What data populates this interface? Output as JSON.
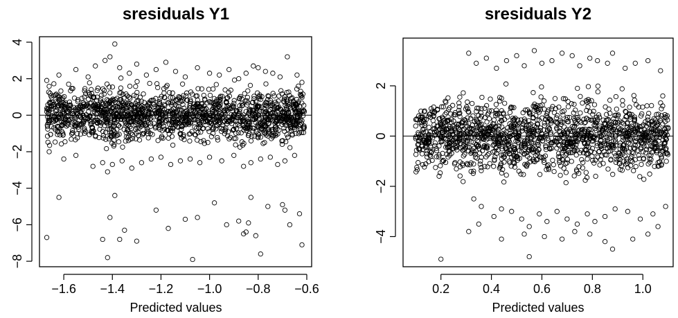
{
  "chart_data": [
    {
      "type": "scatter",
      "title": "sresiduals Y1",
      "xlabel": "Predicted values",
      "ylabel": "",
      "xlim": [
        -1.7,
        -0.58
      ],
      "ylim": [
        -8.3,
        4.3
      ],
      "xticks": [
        -1.6,
        -1.4,
        -1.2,
        -1.0,
        -0.8,
        -0.6
      ],
      "xtick_labels": [
        "−1.6",
        "−1.4",
        "−1.2",
        "−1.0",
        "−0.8",
        "−0.6"
      ],
      "yticks": [
        4,
        2,
        0,
        -2,
        -4,
        -6,
        -8
      ],
      "ytick_labels": [
        "4",
        "2",
        "0",
        "−2",
        "−4",
        "−6",
        "−8"
      ],
      "reference_line_y": 0,
      "marker": "open-circle",
      "series": [
        {
          "x": [
            -1.67,
            -1.66,
            -1.64,
            -1.63,
            -1.61,
            -1.6,
            -1.58,
            -1.57,
            -1.55,
            -1.54,
            -1.52,
            -1.5,
            -1.48,
            -1.46,
            -1.45,
            -1.43,
            -1.41,
            -1.4,
            -1.38,
            -1.37,
            -1.35,
            -1.34,
            -1.32,
            -1.3,
            -1.29,
            -1.27,
            -1.25,
            -1.23,
            -1.21,
            -1.2,
            -1.18,
            -1.16,
            -1.15,
            -1.13,
            -1.11,
            -1.1,
            -1.08,
            -1.06,
            -1.05,
            -1.03,
            -1.01,
            -0.99,
            -0.98,
            -0.96,
            -0.94,
            -0.92,
            -0.9,
            -0.88,
            -0.86,
            -0.85,
            -0.83,
            -0.81,
            -0.8,
            -0.78,
            -0.76,
            -0.75,
            -0.73,
            -0.72,
            -0.7,
            -0.68,
            -0.66,
            -0.65,
            -0.63,
            -0.62,
            -0.61,
            -1.67,
            -1.62,
            -1.58,
            -1.55,
            -1.5,
            -1.47,
            -1.43,
            -1.41,
            -1.39,
            -1.37,
            -1.33,
            -1.3,
            -1.26,
            -1.22,
            -1.18,
            -1.14,
            -1.1,
            -1.05,
            -1.0,
            -0.96,
            -0.92,
            -0.88,
            -0.85,
            -0.82,
            -0.8,
            -0.77,
            -0.74,
            -0.71,
            -0.68,
            -0.64,
            -0.62,
            -1.66,
            -1.6,
            -1.55,
            -1.48,
            -1.44,
            -1.42,
            -1.4,
            -1.36,
            -1.32,
            -1.28,
            -1.24,
            -1.2,
            -1.16,
            -1.12,
            -1.08,
            -1.04,
            -1.0,
            -0.95,
            -0.9,
            -0.86,
            -0.83,
            -0.79,
            -0.75,
            -0.72,
            -0.69,
            -0.65,
            -1.41,
            -1.39,
            -1.35,
            -1.22,
            -1.1,
            -0.98,
            -0.93,
            -0.85,
            -0.84,
            -0.83,
            -0.81,
            -0.76,
            -0.7,
            -0.67,
            -0.63,
            -1.44,
            -1.3,
            -1.17,
            -1.05,
            -0.88
          ],
          "y": [
            0.2,
            -0.4,
            0.6,
            -0.2,
            0.5,
            0.1,
            -0.3,
            0.4,
            -0.1,
            0.3,
            0.0,
            -0.2,
            0.5,
            0.1,
            -0.4,
            0.3,
            0.2,
            -0.1,
            0.4,
            0.0,
            -0.3,
            0.2,
            0.1,
            -0.2,
            0.3,
            0.0,
            0.2,
            -0.1,
            0.4,
            -0.3,
            0.1,
            0.2,
            -0.2,
            0.3,
            0.0,
            -0.1,
            0.4,
            0.2,
            -0.3,
            0.1,
            0.0,
            0.3,
            -0.2,
            0.2,
            -0.1,
            0.4,
            0.0,
            0.1,
            -0.3,
            0.2,
            0.3,
            -0.1,
            0.0,
            0.2,
            -0.2,
            0.3,
            0.1,
            -0.1,
            0.2,
            0.0,
            -0.2,
            0.3,
            0.1,
            -0.3,
            0.2,
            1.9,
            2.2,
            1.7,
            2.5,
            2.1,
            2.7,
            3.0,
            3.2,
            3.9,
            2.6,
            2.3,
            2.8,
            2.2,
            2.5,
            2.9,
            2.4,
            2.1,
            2.6,
            2.3,
            2.2,
            2.5,
            2.0,
            2.3,
            2.7,
            2.6,
            2.4,
            2.3,
            2.1,
            3.2,
            2.2,
            1.8,
            -2.0,
            -2.4,
            -2.2,
            -2.8,
            -2.6,
            -3.1,
            -2.7,
            -2.5,
            -2.9,
            -2.6,
            -2.4,
            -2.3,
            -2.7,
            -2.5,
            -2.4,
            -2.6,
            -2.3,
            -2.5,
            -2.2,
            -2.8,
            -2.6,
            -2.4,
            -2.3,
            -2.7,
            -2.5,
            -2.2,
            -5.6,
            -4.4,
            -6.3,
            -5.2,
            -5.7,
            -4.8,
            -6.0,
            -6.4,
            -5.9,
            -4.5,
            -6.6,
            -5.0,
            -4.9,
            -6.0,
            -5.4,
            -6.8,
            -6.9,
            -6.2,
            -5.6,
            -5.8
          ],
          "outliers": [
            [
              -1.67,
              -6.7
            ],
            [
              -1.42,
              -7.8
            ],
            [
              -1.07,
              -7.9
            ],
            [
              -0.79,
              -7.6
            ],
            [
              -0.62,
              -7.1
            ],
            [
              -1.62,
              -4.5
            ],
            [
              -1.37,
              -6.8
            ],
            [
              -0.86,
              -6.5
            ],
            [
              -0.69,
              -5.2
            ]
          ]
        }
      ]
    },
    {
      "type": "scatter",
      "title": "sresiduals Y2",
      "xlabel": "Predicted values",
      "ylabel": "",
      "xlim": [
        0.05,
        1.12
      ],
      "ylim": [
        -5.2,
        3.9
      ],
      "xticks": [
        0.2,
        0.4,
        0.6,
        0.8,
        1.0
      ],
      "xtick_labels": [
        "0.2",
        "0.4",
        "0.6",
        "0.8",
        "1.0"
      ],
      "yticks": [
        2,
        0,
        -2,
        -4
      ],
      "ytick_labels": [
        "2",
        "0",
        "−2",
        "−4"
      ],
      "reference_line_y": 0,
      "marker": "open-circle",
      "series": [
        {
          "x": [
            0.1,
            0.2,
            0.23,
            0.25,
            0.28,
            0.31,
            0.33,
            0.35,
            0.37,
            0.39,
            0.41,
            0.43,
            0.45,
            0.47,
            0.49,
            0.51,
            0.53,
            0.55,
            0.57,
            0.59,
            0.61,
            0.63,
            0.65,
            0.67,
            0.69,
            0.71,
            0.73,
            0.75,
            0.77,
            0.79,
            0.81,
            0.83,
            0.85,
            0.87,
            0.89,
            0.92,
            0.95,
            0.98,
            1.0,
            1.03,
            1.05,
            1.08,
            1.1,
            0.31,
            0.34,
            0.38,
            0.42,
            0.46,
            0.5,
            0.53,
            0.57,
            0.6,
            0.64,
            0.68,
            0.72,
            0.75,
            0.79,
            0.82,
            0.86,
            0.88,
            0.93,
            0.97,
            1.02,
            1.07,
            0.33,
            0.36,
            0.41,
            0.44,
            0.48,
            0.52,
            0.55,
            0.59,
            0.62,
            0.66,
            0.7,
            0.74,
            0.78,
            0.81,
            0.85,
            0.89,
            0.94,
            0.99,
            1.04,
            1.09,
            0.2,
            0.31,
            0.35,
            0.44,
            0.53,
            0.55,
            0.61,
            0.68,
            0.73,
            0.79,
            0.85,
            0.88,
            0.96,
            1.02,
            1.06
          ],
          "y": [
            0.4,
            -0.2,
            0.3,
            0.6,
            -0.3,
            0.5,
            0.1,
            -0.4,
            0.3,
            0.2,
            -0.1,
            0.4,
            0.0,
            -0.2,
            0.3,
            0.1,
            -0.3,
            0.2,
            0.4,
            -0.1,
            0.0,
            0.3,
            -0.2,
            0.2,
            0.1,
            -0.3,
            0.4,
            0.0,
            0.2,
            -0.1,
            0.3,
            0.1,
            -0.2,
            0.4,
            0.0,
            0.2,
            -0.1,
            0.3,
            0.1,
            -0.2,
            0.2,
            0.0,
            0.3,
            3.3,
            2.9,
            3.1,
            2.7,
            3.0,
            3.2,
            2.8,
            3.4,
            2.9,
            3.0,
            3.3,
            3.2,
            2.8,
            3.1,
            3.0,
            2.9,
            3.3,
            2.7,
            2.9,
            3.0,
            2.6,
            -2.5,
            -2.8,
            -3.2,
            -2.9,
            -3.0,
            -3.3,
            -3.6,
            -3.1,
            -3.4,
            -3.0,
            -3.3,
            -3.5,
            -3.1,
            -3.4,
            -3.2,
            -2.9,
            -3.0,
            -3.3,
            -3.1,
            -2.8,
            -4.9,
            -3.8,
            -3.5,
            -4.1,
            -3.9,
            -4.8,
            -4.0,
            -4.1,
            -3.8,
            -3.9,
            -4.2,
            -4.5,
            -4.1,
            -3.9,
            -3.6
          ]
        }
      ]
    }
  ]
}
